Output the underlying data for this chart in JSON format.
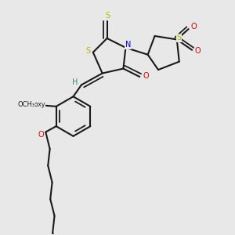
{
  "background_color": "#e8e8e8",
  "bond_color": "#1a1a1a",
  "bond_lw": 1.5,
  "S_color": "#b8b800",
  "N_color": "#0000dd",
  "O_color": "#dd0000",
  "H_color": "#3a8888",
  "figsize": [
    3.0,
    3.0
  ],
  "dpi": 100,
  "xlim": [
    0,
    10
  ],
  "ylim": [
    0,
    10
  ]
}
